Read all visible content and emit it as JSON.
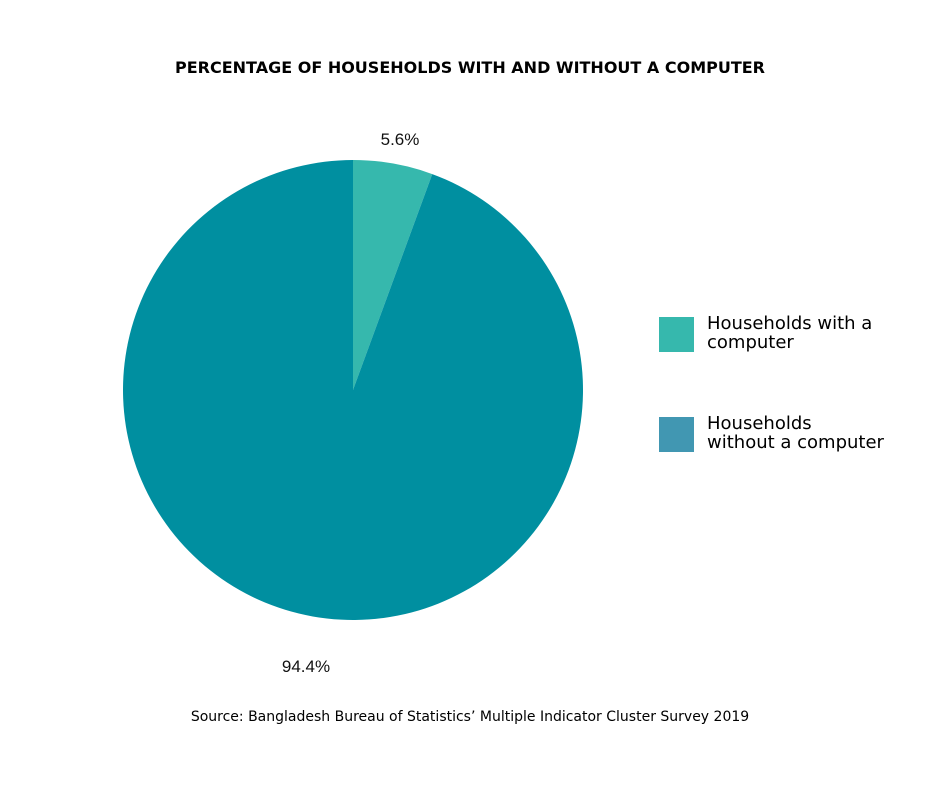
{
  "chart_data": {
    "type": "pie",
    "title": "PERCENTAGE OF HOUSEHOLDS WITH AND WITHOUT A COMPUTER",
    "slices": [
      {
        "name": "Households with a computer",
        "value": 5.6,
        "label": "5.6%",
        "color": "#36b8ad"
      },
      {
        "name": "Households without a computer",
        "value": 94.4,
        "label": "94.4%",
        "color": "#008fa0"
      }
    ],
    "legend": {
      "placement": "right",
      "items": [
        {
          "line1": "Households with a",
          "line2": "computer",
          "color": "#36b8ad"
        },
        {
          "line1": "Households",
          "line2": "without a computer",
          "color": "#4197b2"
        }
      ]
    },
    "source": "Source: Bangladesh Bureau of Statistics’ Multiple Indicator Cluster Survey 2019"
  }
}
